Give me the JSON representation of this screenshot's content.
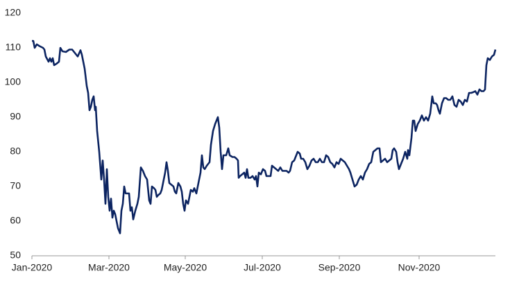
{
  "chart_data": {
    "type": "line",
    "x": [
      0,
      2,
      4,
      7,
      11,
      16,
      18,
      20,
      24,
      26,
      28,
      30,
      32,
      36,
      39,
      41,
      44,
      49,
      54,
      58,
      62,
      66,
      70,
      72,
      76,
      79,
      81,
      83,
      85,
      87,
      89,
      91,
      92,
      94,
      97,
      100,
      102,
      104,
      106,
      108,
      110,
      112,
      114,
      116,
      118,
      120,
      122,
      124,
      127,
      129,
      131,
      133,
      135,
      137,
      140,
      142,
      144,
      146,
      149,
      152,
      154,
      157,
      160,
      163,
      166,
      169,
      171,
      173,
      176,
      178,
      180,
      182,
      185,
      187,
      190,
      192,
      194,
      196,
      198,
      201,
      204,
      206,
      208,
      211,
      214,
      216,
      218,
      220,
      222,
      225,
      227,
      229,
      232,
      234,
      237,
      240,
      243,
      245,
      247,
      249,
      252,
      256,
      258,
      261,
      264,
      268,
      270,
      272,
      274,
      276,
      280,
      283,
      285,
      289,
      292,
      295,
      297,
      298,
      300,
      303,
      306,
      308,
      310,
      312,
      315,
      318,
      321,
      323,
      325,
      327,
      330,
      333,
      336,
      338,
      341,
      344,
      346,
      349,
      352,
      355,
      358,
      361,
      364,
      367,
      370,
      372,
      375,
      378,
      380,
      383,
      386,
      388,
      391,
      394,
      397,
      400,
      403,
      406,
      409,
      412,
      415,
      418,
      421,
      424,
      427,
      430,
      433,
      436,
      439,
      442,
      445,
      448,
      451,
      454,
      457,
      459,
      462,
      465,
      468,
      471,
      474,
      477,
      480,
      483,
      486,
      489,
      492,
      495,
      498,
      501,
      503,
      506,
      509,
      512,
      515,
      518,
      520,
      522,
      525,
      527,
      529,
      532,
      535,
      538,
      541,
      542,
      544,
      547,
      549,
      551,
      553,
      556,
      559,
      562,
      565,
      568,
      571,
      574,
      577,
      579,
      582,
      584,
      586,
      588,
      591,
      594,
      597,
      600,
      603,
      606,
      609,
      612,
      615,
      618,
      621,
      624,
      627,
      630,
      633,
      636,
      639,
      642,
      645,
      648,
      651,
      653,
      655,
      657,
      660,
      663,
      666,
      668
    ],
    "series": [
      {
        "color": "#0c2461",
        "values": [
          112,
          112,
          110,
          111,
          110.5,
          110,
          109.5,
          107.5,
          106,
          107,
          106,
          107,
          105,
          105.5,
          106,
          110,
          109,
          108.8,
          109.5,
          109.5,
          108.5,
          107.5,
          109.3,
          108,
          104,
          99,
          97,
          92,
          93,
          95,
          96,
          92,
          93,
          86,
          80,
          72,
          77.5,
          72,
          65,
          75,
          67,
          63,
          66.5,
          61,
          63,
          62,
          60,
          58,
          56.5,
          63,
          65,
          70,
          68,
          68,
          68,
          63,
          64,
          60.5,
          63,
          65,
          67,
          75.5,
          74.5,
          73,
          72,
          66,
          65,
          70,
          69.5,
          69,
          67,
          67.5,
          68,
          69,
          72,
          74,
          77,
          74.5,
          71,
          70.5,
          70,
          68.5,
          68,
          71,
          70,
          68.5,
          65,
          63,
          66,
          65,
          67,
          69,
          68.5,
          69.5,
          68,
          71,
          74,
          79,
          75.5,
          75,
          76,
          77,
          82,
          86,
          88,
          90,
          87,
          80,
          75,
          79,
          79,
          81,
          79,
          78.5,
          78.5,
          78,
          77.5,
          72.5,
          73,
          73.5,
          74,
          72.5,
          75,
          72.5,
          72.5,
          73,
          72,
          73,
          70,
          74,
          73.5,
          75,
          74.5,
          73,
          73,
          73,
          76,
          75.5,
          75,
          74.5,
          75.5,
          74.5,
          74.5,
          74.5,
          74,
          74.5,
          77,
          77.5,
          78.5,
          80,
          79.5,
          78,
          78,
          77,
          75,
          76,
          77.5,
          78,
          77,
          77,
          78,
          77,
          77,
          79,
          78.5,
          77,
          76.5,
          75.5,
          77,
          76.5,
          78,
          77.5,
          77,
          76,
          75,
          74,
          72,
          70,
          70.5,
          72,
          73,
          72,
          74,
          75,
          76.5,
          77,
          80,
          80.5,
          81,
          81,
          77,
          77.5,
          78,
          77,
          77.5,
          78,
          80.5,
          81,
          80,
          77,
          75,
          76.5,
          78,
          80,
          78,
          80.5,
          79,
          84,
          89,
          89,
          86,
          88,
          89,
          90.5,
          89,
          90,
          89,
          91,
          96,
          94,
          94,
          93.5,
          92,
          91,
          94,
          95.5,
          95.5,
          95,
          95,
          96,
          93.5,
          93,
          95,
          94.5,
          93.5,
          95,
          94.5,
          97,
          97,
          97.2,
          97.5,
          96.5,
          98,
          97.5,
          97.5,
          98,
          105,
          107,
          106.5,
          107.5,
          108,
          109.5
        ]
      }
    ],
    "xlim": [
      0,
      668
    ],
    "xticks": [
      {
        "value": 0,
        "label": "Jan-2020"
      },
      {
        "value": 111,
        "label": "Mar-2020"
      },
      {
        "value": 221,
        "label": "May-2020"
      },
      {
        "value": 332,
        "label": "Jul-2020"
      },
      {
        "value": 443,
        "label": "Sep-2020"
      },
      {
        "value": 558,
        "label": "Nov-2020"
      }
    ],
    "ylim": [
      50,
      120
    ],
    "yticks": [
      50,
      60,
      70,
      80,
      90,
      100,
      110,
      120
    ],
    "grid": false
  }
}
